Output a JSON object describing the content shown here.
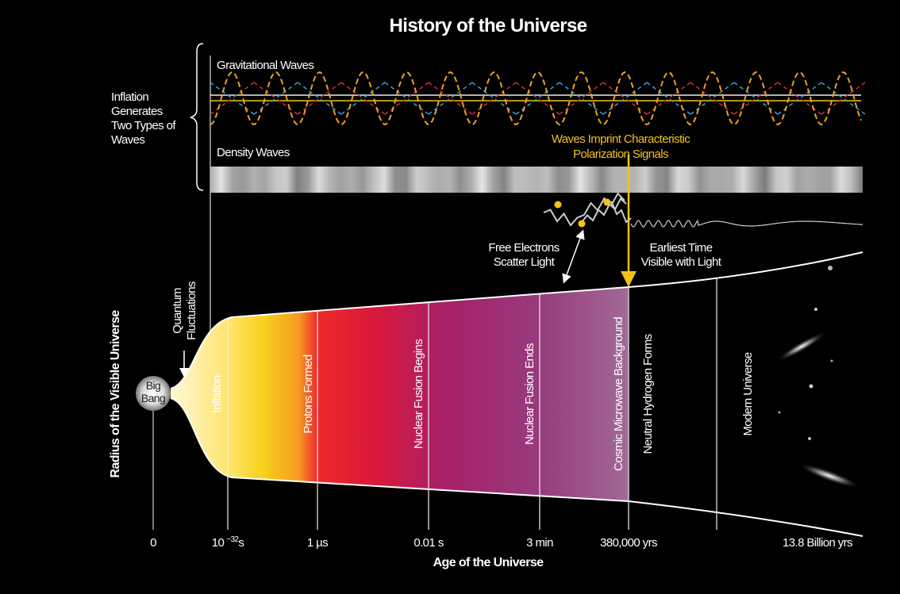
{
  "title": "History of the Universe",
  "inflation_note": {
    "lines": [
      "Inflation",
      "Generates",
      "Two Types of",
      "Waves"
    ]
  },
  "gravitational_waves": "Gravitational Waves",
  "density_waves": "Density Waves",
  "polarization_note": {
    "lines": [
      "Waves Imprint Characteristic",
      "Polarization Signals"
    ]
  },
  "scatter_note": {
    "lines": [
      "Free Electrons",
      "Scatter Light"
    ]
  },
  "earliest_note": {
    "lines": [
      "Earliest Time",
      "Visible with Light"
    ]
  },
  "quantum_note": {
    "lines": [
      "Quantum",
      "Fluctuations"
    ]
  },
  "big_bang": {
    "lines": [
      "Big",
      "Bang"
    ]
  },
  "y_axis_label": "Radius of the Visible Universe",
  "x_axis_label": "Age of the Universe",
  "eras": [
    "Inflation",
    "Protons Formed",
    "Nuclear Fusion Begins",
    "Nuclear Fusion Ends",
    "Cosmic Microwave Background",
    "Neutral Hydrogen Forms",
    "Modern Universe"
  ],
  "ticks": [
    "0",
    {
      "base": "10",
      "exp": "−32",
      "unit": "s"
    },
    "1 µs",
    "0.01 s",
    "3 min",
    "380,000 yrs",
    "13.8 Billion yrs"
  ]
}
